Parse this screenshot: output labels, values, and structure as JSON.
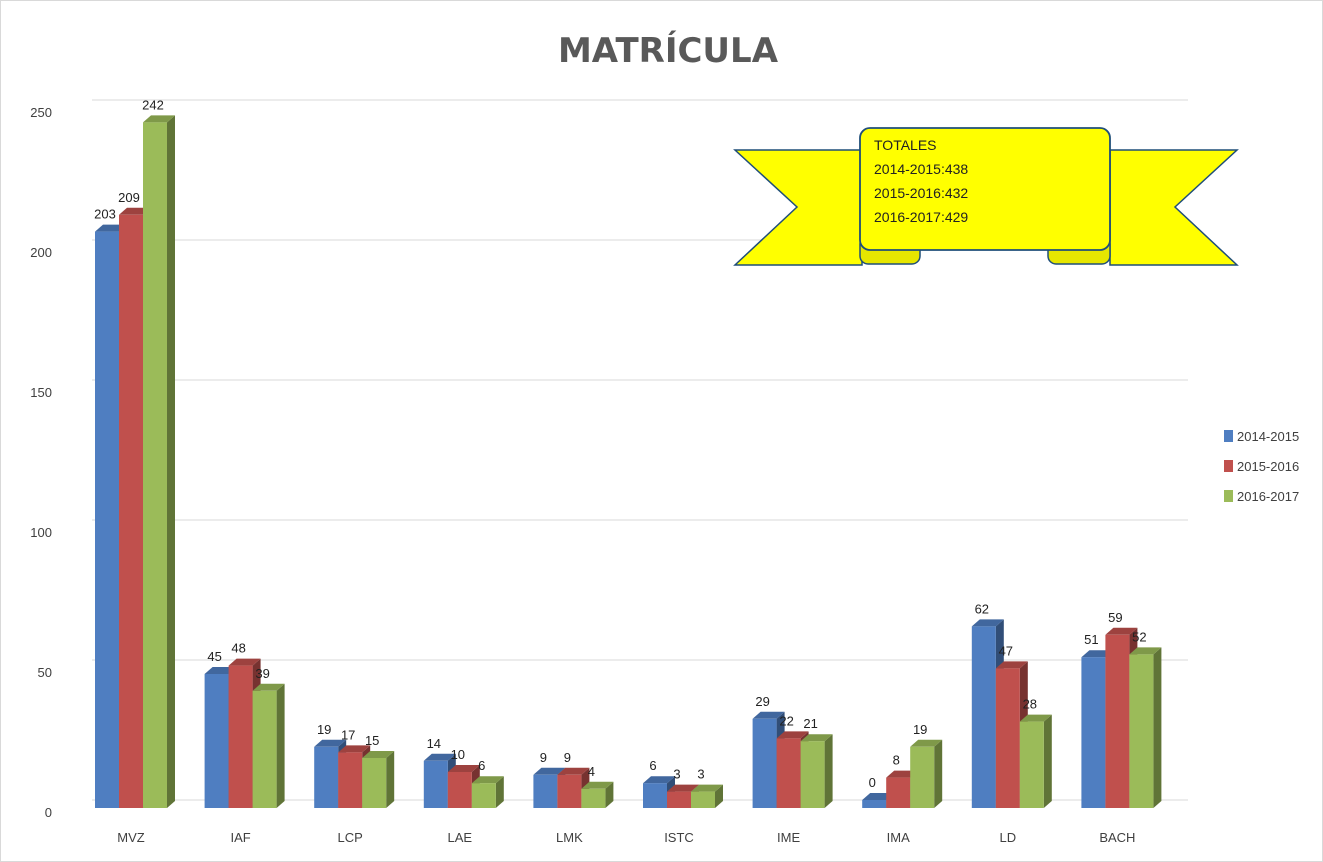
{
  "chart_data": {
    "type": "bar",
    "title": "MATRÍCULA",
    "categories": [
      "MVZ",
      "IAF",
      "LCP",
      "LAE",
      "LMK",
      "ISTC",
      "IME",
      "IMA",
      "LD",
      "BACH"
    ],
    "series": [
      {
        "name": "2014-2015",
        "color": "#4f7ec1",
        "values": [
          203,
          45,
          19,
          14,
          9,
          6,
          29,
          0,
          62,
          51
        ]
      },
      {
        "name": "2015-2016",
        "color": "#c0504d",
        "values": [
          209,
          48,
          17,
          10,
          9,
          3,
          22,
          8,
          47,
          59
        ]
      },
      {
        "name": "2016-2017",
        "color": "#9bbb59",
        "values": [
          242,
          39,
          15,
          6,
          4,
          3,
          21,
          19,
          28,
          52
        ]
      }
    ],
    "ylim": [
      0,
      250
    ],
    "yticks": [
      0,
      50,
      100,
      150,
      200,
      250
    ],
    "grid": true,
    "legend_position": "right",
    "annotation": {
      "style": "yellow ribbon banner",
      "lines": [
        "TOTALES",
        "2014-2015:438",
        "2015-2016:432",
        "2016-2017:429"
      ]
    }
  }
}
